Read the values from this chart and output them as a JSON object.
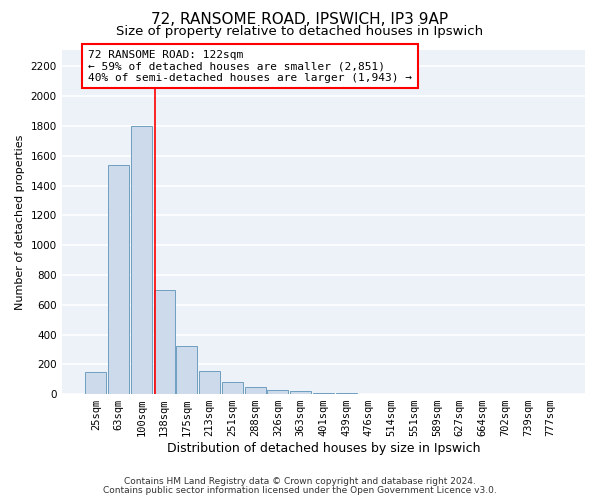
{
  "title1": "72, RANSOME ROAD, IPSWICH, IP3 9AP",
  "title2": "Size of property relative to detached houses in Ipswich",
  "xlabel": "Distribution of detached houses by size in Ipswich",
  "ylabel": "Number of detached properties",
  "footer1": "Contains HM Land Registry data © Crown copyright and database right 2024.",
  "footer2": "Contains public sector information licensed under the Open Government Licence v3.0.",
  "bin_labels": [
    "25sqm",
    "63sqm",
    "100sqm",
    "138sqm",
    "175sqm",
    "213sqm",
    "251sqm",
    "288sqm",
    "326sqm",
    "363sqm",
    "401sqm",
    "439sqm",
    "476sqm",
    "514sqm",
    "551sqm",
    "589sqm",
    "627sqm",
    "664sqm",
    "702sqm",
    "739sqm",
    "777sqm"
  ],
  "bar_values": [
    150,
    1540,
    1800,
    700,
    320,
    155,
    80,
    45,
    25,
    20,
    10,
    5,
    3,
    1,
    0,
    0,
    0,
    0,
    0,
    0,
    0
  ],
  "bar_color": "#ccdaeb",
  "bar_edge_color": "#6e9ec0",
  "red_line_x": 2.58,
  "annotation_text": "72 RANSOME ROAD: 122sqm\n← 59% of detached houses are smaller (2,851)\n40% of semi-detached houses are larger (1,943) →",
  "annotation_box_color": "white",
  "annotation_box_edge_color": "red",
  "ylim": [
    0,
    2310
  ],
  "yticks": [
    0,
    200,
    400,
    600,
    800,
    1000,
    1200,
    1400,
    1600,
    1800,
    2000,
    2200
  ],
  "plot_bg_color": "#edf2f9",
  "grid_color": "white",
  "title1_fontsize": 11,
  "title2_fontsize": 9.5,
  "xlabel_fontsize": 9,
  "ylabel_fontsize": 8,
  "tick_fontsize": 7.5,
  "annotation_fontsize": 8
}
